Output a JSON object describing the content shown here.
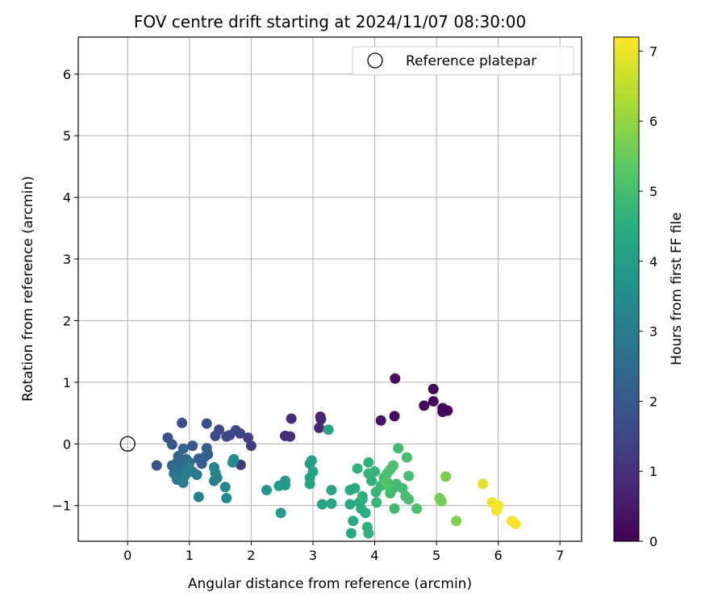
{
  "chart_data": {
    "type": "scatter",
    "title": "FOV centre drift starting at 2024/11/07 08:30:00",
    "xlabel": "Angular distance from reference (arcmin)",
    "ylabel": "Rotation from reference (arcmin)",
    "xlim": [
      -0.8,
      7.35
    ],
    "ylim": [
      -1.58,
      6.6
    ],
    "xticks": [
      0,
      1,
      2,
      3,
      4,
      5,
      6,
      7
    ],
    "yticks": [
      -1,
      0,
      1,
      2,
      3,
      4,
      5,
      6
    ],
    "grid": true,
    "legend": {
      "placement": "top-right",
      "entries": [
        "Reference platepar"
      ]
    },
    "colorbar": {
      "label": "Hours from first FF file",
      "colormap": "viridis",
      "range": [
        0,
        7.2
      ],
      "ticks": [
        0,
        1,
        2,
        3,
        4,
        5,
        6,
        7
      ]
    },
    "reference_point": {
      "x": 0,
      "y": 0
    },
    "points": [
      [
        4.95,
        0.89,
        0.05
      ],
      [
        5.1,
        0.58,
        0.08
      ],
      [
        5.18,
        0.54,
        0.1
      ],
      [
        5.1,
        0.52,
        0.12
      ],
      [
        4.95,
        0.69,
        0.15
      ],
      [
        4.8,
        0.62,
        0.2
      ],
      [
        4.33,
        1.06,
        0.3
      ],
      [
        4.32,
        0.45,
        0.35
      ],
      [
        4.1,
        0.38,
        0.4
      ],
      [
        3.12,
        0.44,
        0.7
      ],
      [
        3.13,
        0.4,
        0.75
      ],
      [
        3.1,
        0.26,
        0.8
      ],
      [
        2.65,
        0.41,
        0.85
      ],
      [
        2.55,
        0.13,
        0.9
      ],
      [
        2.63,
        0.12,
        0.95
      ],
      [
        1.83,
        -0.34,
        1.2
      ],
      [
        2.0,
        -0.03,
        1.3
      ],
      [
        1.95,
        0.1,
        1.35
      ],
      [
        1.82,
        0.17,
        1.4
      ],
      [
        1.75,
        0.22,
        1.45
      ],
      [
        1.65,
        0.14,
        1.5
      ],
      [
        1.6,
        0.12,
        1.55
      ],
      [
        1.48,
        0.23,
        1.6
      ],
      [
        1.42,
        0.13,
        1.65
      ],
      [
        1.28,
        0.33,
        1.7
      ],
      [
        0.88,
        0.34,
        1.75
      ],
      [
        0.65,
        0.1,
        1.8
      ],
      [
        0.47,
        -0.35,
        1.85
      ],
      [
        0.72,
        -0.01,
        1.9
      ],
      [
        1.05,
        -0.03,
        1.95
      ],
      [
        1.15,
        -0.24,
        2.0
      ],
      [
        1.2,
        -0.32,
        2.05
      ],
      [
        1.28,
        -0.07,
        2.1
      ],
      [
        1.3,
        -0.17,
        2.15
      ],
      [
        1.25,
        -0.21,
        2.2
      ],
      [
        0.9,
        -0.08,
        2.3
      ],
      [
        0.82,
        -0.2,
        2.35
      ],
      [
        0.95,
        -0.25,
        2.4
      ],
      [
        0.8,
        -0.3,
        2.45
      ],
      [
        0.72,
        -0.35,
        2.5
      ],
      [
        0.9,
        -0.35,
        2.55
      ],
      [
        1.0,
        -0.3,
        2.6
      ],
      [
        0.85,
        -0.45,
        2.65
      ],
      [
        0.75,
        -0.48,
        2.7
      ],
      [
        0.92,
        -0.52,
        2.75
      ],
      [
        1.05,
        -0.45,
        2.8
      ],
      [
        1.12,
        -0.5,
        2.85
      ],
      [
        0.8,
        -0.58,
        2.9
      ],
      [
        0.9,
        -0.63,
        2.95
      ],
      [
        1.0,
        -0.4,
        3.0
      ],
      [
        0.95,
        -0.48,
        3.05
      ],
      [
        1.15,
        -0.86,
        3.1
      ],
      [
        1.4,
        -0.6,
        3.15
      ],
      [
        1.42,
        -0.47,
        3.2
      ],
      [
        1.45,
        -0.55,
        3.25
      ],
      [
        1.4,
        -0.38,
        3.3
      ],
      [
        1.58,
        -0.7,
        3.35
      ],
      [
        1.6,
        -0.88,
        3.4
      ],
      [
        1.72,
        -0.25,
        3.45
      ],
      [
        1.7,
        -0.3,
        3.5
      ],
      [
        2.25,
        -0.75,
        3.8
      ],
      [
        2.45,
        -0.68,
        3.85
      ],
      [
        2.55,
        -0.6,
        3.9
      ],
      [
        2.55,
        -0.67,
        3.95
      ],
      [
        2.48,
        -1.12,
        4.0
      ],
      [
        2.95,
        -0.32,
        4.05
      ],
      [
        2.98,
        -0.27,
        4.08
      ],
      [
        2.95,
        -0.55,
        4.1
      ],
      [
        3.0,
        -0.45,
        4.12
      ],
      [
        2.95,
        -0.65,
        4.15
      ],
      [
        3.25,
        0.23,
        4.18
      ],
      [
        3.3,
        -0.75,
        4.2
      ],
      [
        3.3,
        -0.97,
        4.25
      ],
      [
        3.15,
        -0.98,
        4.28
      ],
      [
        3.6,
        -0.98,
        4.3
      ],
      [
        3.62,
        -1.45,
        4.35
      ],
      [
        3.65,
        -1.25,
        4.38
      ],
      [
        3.6,
        -0.75,
        4.4
      ],
      [
        3.68,
        -0.72,
        4.42
      ],
      [
        3.75,
        -0.95,
        4.45
      ],
      [
        3.78,
        -1.05,
        4.48
      ],
      [
        3.8,
        -0.9,
        4.5
      ],
      [
        3.85,
        -1.12,
        4.52
      ],
      [
        3.88,
        -1.35,
        4.55
      ],
      [
        3.9,
        -1.45,
        4.58
      ],
      [
        3.8,
        -0.85,
        4.6
      ],
      [
        3.72,
        -0.4,
        4.62
      ],
      [
        3.9,
        -0.3,
        4.65
      ],
      [
        3.95,
        -0.6,
        4.68
      ],
      [
        4.0,
        -0.45,
        4.7
      ],
      [
        3.9,
        -0.48,
        4.72
      ],
      [
        4.02,
        -0.78,
        4.75
      ],
      [
        4.03,
        -0.95,
        4.78
      ],
      [
        4.1,
        -0.68,
        4.8
      ],
      [
        4.15,
        -0.55,
        4.82
      ],
      [
        4.2,
        -0.62,
        4.84
      ],
      [
        4.25,
        -0.8,
        4.86
      ],
      [
        4.3,
        -0.72,
        4.88
      ],
      [
        4.32,
        -1.05,
        4.9
      ],
      [
        4.35,
        -0.65,
        4.92
      ],
      [
        4.38,
        -0.07,
        4.94
      ],
      [
        4.45,
        -0.72,
        4.96
      ],
      [
        4.5,
        -0.85,
        4.98
      ],
      [
        4.52,
        -0.22,
        5.0
      ],
      [
        4.55,
        -0.52,
        5.02
      ],
      [
        4.55,
        -0.9,
        5.04
      ],
      [
        4.68,
        -1.05,
        5.06
      ],
      [
        4.2,
        -0.48,
        5.08
      ],
      [
        4.25,
        -0.42,
        5.1
      ],
      [
        4.3,
        -0.35,
        5.12
      ],
      [
        4.22,
        -0.68,
        5.14
      ],
      [
        4.18,
        -0.62,
        5.16
      ],
      [
        5.05,
        -0.88,
        5.6
      ],
      [
        5.08,
        -0.93,
        5.65
      ],
      [
        5.15,
        -0.53,
        5.7
      ],
      [
        5.32,
        -1.25,
        5.8
      ],
      [
        5.75,
        -0.65,
        6.9
      ],
      [
        5.9,
        -0.95,
        7.0
      ],
      [
        5.97,
        -1.08,
        7.05
      ],
      [
        6.0,
        -1.0,
        7.08
      ],
      [
        6.22,
        -1.25,
        7.12
      ],
      [
        6.28,
        -1.3,
        7.15
      ]
    ]
  }
}
